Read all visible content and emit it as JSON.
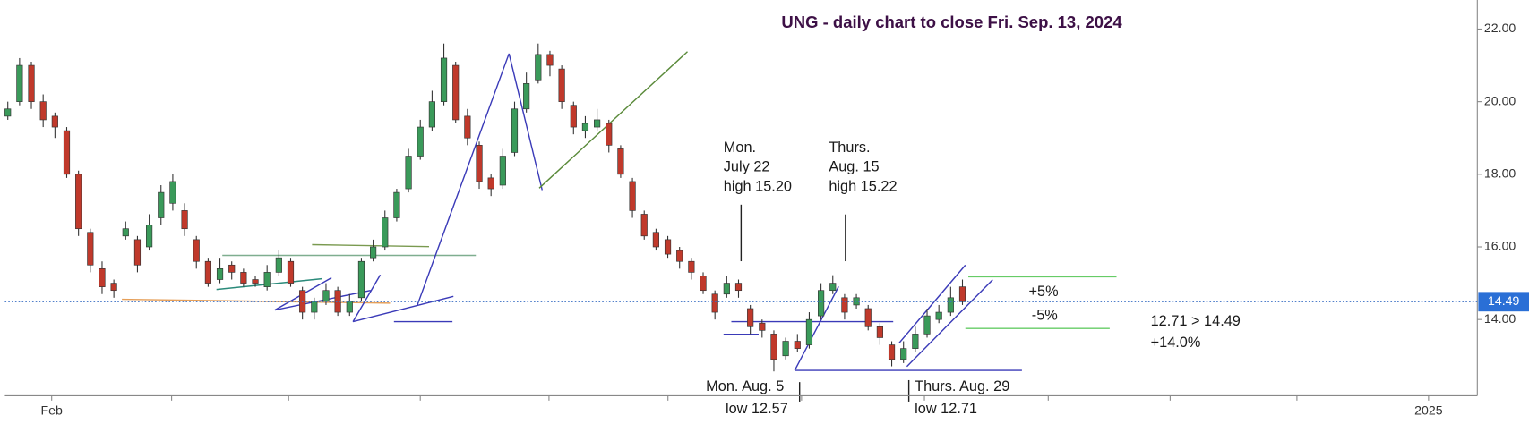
{
  "chart_data": {
    "type": "candlestick",
    "title": "UNG - daily chart to close Fri. Sep. 13, 2024",
    "x_labels": [
      "Feb",
      "2025"
    ],
    "ylim": [
      11.9,
      22.8
    ],
    "yticks": [
      {
        "value": 14,
        "label": "14.00"
      },
      {
        "value": 16,
        "label": "16.00"
      },
      {
        "value": 18,
        "label": "18.00"
      },
      {
        "value": 20,
        "label": "20.00"
      },
      {
        "value": 22,
        "label": "22.00"
      }
    ],
    "up_color": "#3a9a5a",
    "down_color": "#c0392b",
    "last_price": 14.49,
    "candles": [
      [
        19.6,
        20.0,
        19.5,
        19.8
      ],
      [
        20.0,
        21.2,
        19.9,
        21.0
      ],
      [
        21.0,
        21.1,
        19.8,
        20.0
      ],
      [
        20.0,
        20.2,
        19.3,
        19.5
      ],
      [
        19.6,
        19.7,
        19.0,
        19.3
      ],
      [
        19.2,
        19.3,
        17.9,
        18.0
      ],
      [
        18.0,
        18.1,
        16.3,
        16.5
      ],
      [
        16.4,
        16.5,
        15.3,
        15.5
      ],
      [
        15.4,
        15.6,
        14.7,
        14.9
      ],
      [
        15.0,
        15.1,
        14.6,
        14.8
      ],
      [
        16.3,
        16.7,
        16.2,
        16.5
      ],
      [
        16.2,
        16.3,
        15.3,
        15.5
      ],
      [
        16.0,
        16.9,
        15.9,
        16.6
      ],
      [
        16.8,
        17.7,
        16.6,
        17.5
      ],
      [
        17.2,
        18.0,
        17.0,
        17.8
      ],
      [
        17.0,
        17.2,
        16.3,
        16.5
      ],
      [
        16.2,
        16.3,
        15.4,
        15.6
      ],
      [
        15.6,
        15.7,
        14.9,
        15.0
      ],
      [
        15.1,
        15.7,
        15.0,
        15.4
      ],
      [
        15.5,
        15.6,
        15.1,
        15.3
      ],
      [
        15.3,
        15.4,
        14.9,
        15.0
      ],
      [
        15.1,
        15.2,
        14.9,
        15.0
      ],
      [
        14.9,
        15.5,
        14.8,
        15.3
      ],
      [
        15.3,
        15.9,
        15.2,
        15.7
      ],
      [
        15.6,
        15.7,
        14.9,
        15.0
      ],
      [
        14.8,
        14.9,
        14.0,
        14.2
      ],
      [
        14.2,
        14.6,
        14.0,
        14.5
      ],
      [
        14.5,
        15.0,
        14.4,
        14.8
      ],
      [
        14.8,
        14.9,
        14.1,
        14.2
      ],
      [
        14.2,
        14.7,
        14.1,
        14.5
      ],
      [
        14.6,
        15.7,
        14.5,
        15.6
      ],
      [
        15.7,
        16.2,
        15.6,
        16.0
      ],
      [
        16.0,
        17.0,
        15.9,
        16.8
      ],
      [
        16.8,
        17.6,
        16.7,
        17.5
      ],
      [
        17.6,
        18.7,
        17.5,
        18.5
      ],
      [
        18.5,
        19.5,
        18.4,
        19.3
      ],
      [
        19.3,
        20.3,
        19.2,
        20.0
      ],
      [
        20.0,
        21.6,
        19.9,
        21.2
      ],
      [
        21.0,
        21.1,
        19.4,
        19.5
      ],
      [
        19.6,
        19.8,
        18.8,
        19.0
      ],
      [
        18.8,
        18.9,
        17.6,
        17.8
      ],
      [
        17.9,
        18.0,
        17.4,
        17.6
      ],
      [
        17.7,
        18.7,
        17.6,
        18.5
      ],
      [
        18.6,
        20.0,
        18.5,
        19.8
      ],
      [
        19.8,
        20.8,
        19.7,
        20.5
      ],
      [
        20.6,
        21.6,
        20.5,
        21.3
      ],
      [
        21.3,
        21.4,
        20.7,
        21.0
      ],
      [
        20.9,
        21.0,
        19.8,
        20.0
      ],
      [
        19.9,
        20.0,
        19.1,
        19.3
      ],
      [
        19.2,
        19.6,
        19.0,
        19.4
      ],
      [
        19.3,
        19.8,
        19.2,
        19.5
      ],
      [
        19.4,
        19.5,
        18.6,
        18.8
      ],
      [
        18.7,
        18.8,
        17.9,
        18.0
      ],
      [
        17.8,
        17.9,
        16.8,
        17.0
      ],
      [
        16.9,
        17.0,
        16.2,
        16.3
      ],
      [
        16.4,
        16.5,
        15.9,
        16.0
      ],
      [
        16.2,
        16.3,
        15.7,
        15.8
      ],
      [
        15.9,
        16.0,
        15.4,
        15.6
      ],
      [
        15.6,
        15.7,
        15.1,
        15.3
      ],
      [
        15.2,
        15.3,
        14.7,
        14.8
      ],
      [
        14.7,
        14.8,
        14.0,
        14.2
      ],
      [
        14.7,
        15.2,
        14.6,
        15.0
      ],
      [
        15.0,
        15.1,
        14.6,
        14.8
      ],
      [
        14.3,
        14.4,
        13.6,
        13.8
      ],
      [
        13.9,
        14.0,
        13.5,
        13.7
      ],
      [
        13.6,
        13.7,
        12.57,
        12.9
      ],
      [
        13.0,
        13.5,
        12.9,
        13.4
      ],
      [
        13.4,
        13.6,
        13.1,
        13.2
      ],
      [
        13.3,
        14.2,
        13.2,
        14.0
      ],
      [
        14.1,
        15.0,
        14.0,
        14.8
      ],
      [
        14.8,
        15.22,
        14.7,
        15.0
      ],
      [
        14.6,
        14.7,
        14.0,
        14.2
      ],
      [
        14.4,
        14.7,
        14.3,
        14.6
      ],
      [
        14.3,
        14.4,
        13.7,
        13.8
      ],
      [
        13.8,
        13.9,
        13.3,
        13.5
      ],
      [
        13.3,
        13.4,
        12.71,
        12.9
      ],
      [
        12.9,
        13.4,
        12.8,
        13.2
      ],
      [
        13.2,
        13.8,
        13.1,
        13.6
      ],
      [
        13.6,
        14.3,
        13.5,
        14.1
      ],
      [
        14.0,
        14.4,
        13.9,
        14.2
      ],
      [
        14.2,
        14.9,
        14.1,
        14.6
      ],
      [
        14.9,
        15.1,
        14.4,
        14.49
      ]
    ],
    "annotations": [
      "Mon.",
      "July 22",
      "high 15.20",
      "Thurs.",
      "Aug. 15",
      "high 15.22",
      "+5%",
      "-5%",
      "12.71 > 14.49",
      "+14.0%",
      "Mon. Aug. 5",
      "low 12.57",
      "Thurs. Aug. 29",
      "low 12.71"
    ]
  }
}
